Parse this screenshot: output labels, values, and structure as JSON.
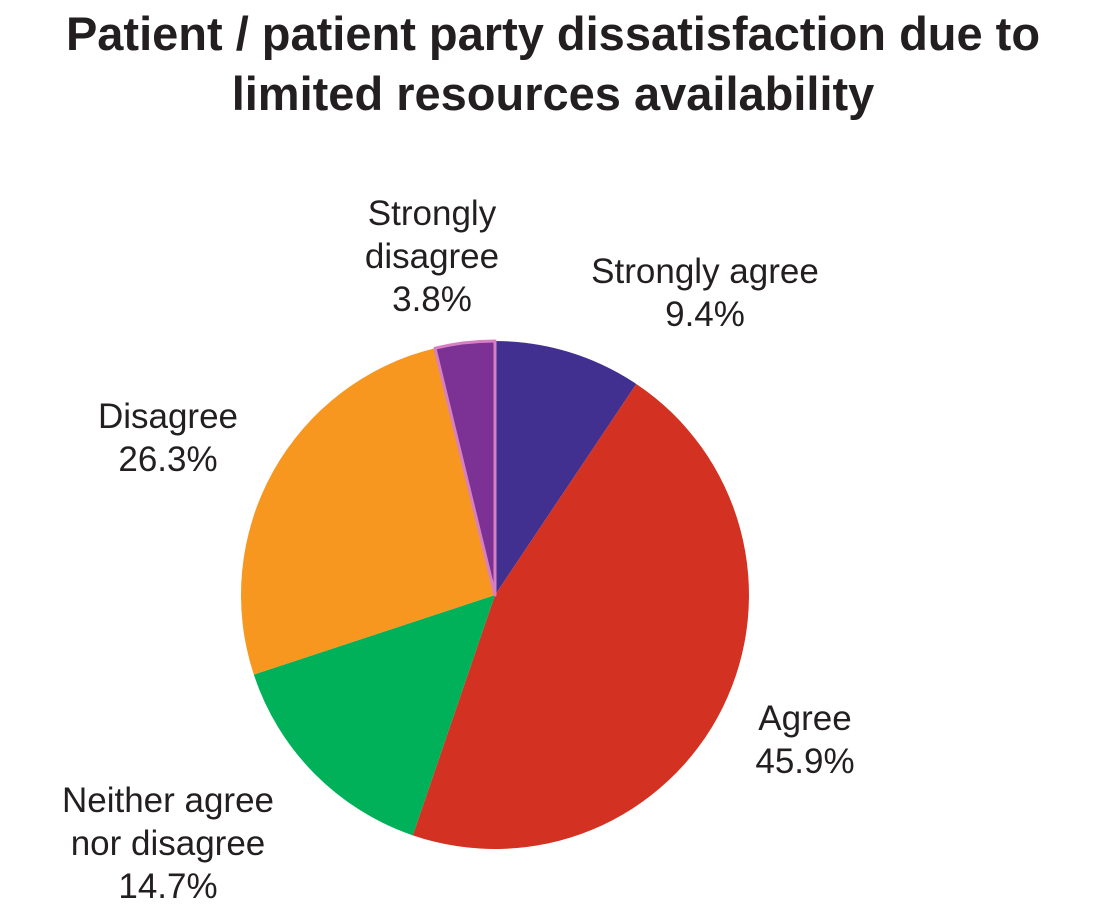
{
  "chart_data": {
    "type": "pie",
    "title": "Patient / patient party dissatisfaction due to limited resources availability",
    "title_lines": [
      "Patient / patient party dissatisfaction due to",
      "limited resources availability"
    ],
    "start_angle_deg": 0,
    "direction": "clockwise",
    "legend": "none",
    "slices": [
      {
        "label": "Strongly agree",
        "label_lines": [
          "Strongly agree"
        ],
        "value": 9.4,
        "value_text": "9.4%",
        "color": "#41308f"
      },
      {
        "label": "Agree",
        "label_lines": [
          "Agree"
        ],
        "value": 45.9,
        "value_text": "45.9%",
        "color": "#d33121"
      },
      {
        "label": "Neither agree nor disagree",
        "label_lines": [
          "Neither agree",
          "nor disagree"
        ],
        "value": 14.7,
        "value_text": "14.7%",
        "color": "#00b159"
      },
      {
        "label": "Disagree",
        "label_lines": [
          "Disagree"
        ],
        "value": 26.3,
        "value_text": "26.3%",
        "color": "#f7971f"
      },
      {
        "label": "Strongly disagree",
        "label_lines": [
          "Strongly",
          "disagree"
        ],
        "value": 3.8,
        "value_text": "3.8%",
        "color": "#7b3294",
        "stroke": "#d77fc3"
      }
    ]
  }
}
